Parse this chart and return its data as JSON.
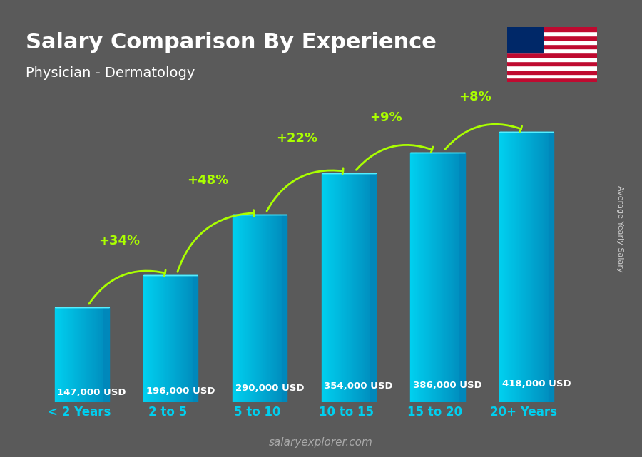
{
  "title": "Salary Comparison By Experience",
  "subtitle": "Physician - Dermatology",
  "categories": [
    "< 2 Years",
    "2 to 5",
    "5 to 10",
    "10 to 15",
    "15 to 20",
    "20+ Years"
  ],
  "values": [
    147000,
    196000,
    290000,
    354000,
    386000,
    418000
  ],
  "labels": [
    "147,000 USD",
    "196,000 USD",
    "290,000 USD",
    "354,000 USD",
    "386,000 USD",
    "418,000 USD"
  ],
  "pct_changes": [
    "+34%",
    "+48%",
    "+22%",
    "+9%",
    "+8%"
  ],
  "bar_color_top": "#00cfef",
  "bar_color_mid": "#00aadd",
  "bar_color_dark": "#0088bb",
  "bg_color": "#5a5a5a",
  "title_color": "#ffffff",
  "label_color": "#ffffff",
  "pct_color": "#aaff00",
  "xlabel_color": "#00cfef",
  "footer_color": "#aaaaaa",
  "ylabel_text": "Average Yearly Salary",
  "footer_text": "salaryexplorer.com",
  "ylim_max": 480000
}
